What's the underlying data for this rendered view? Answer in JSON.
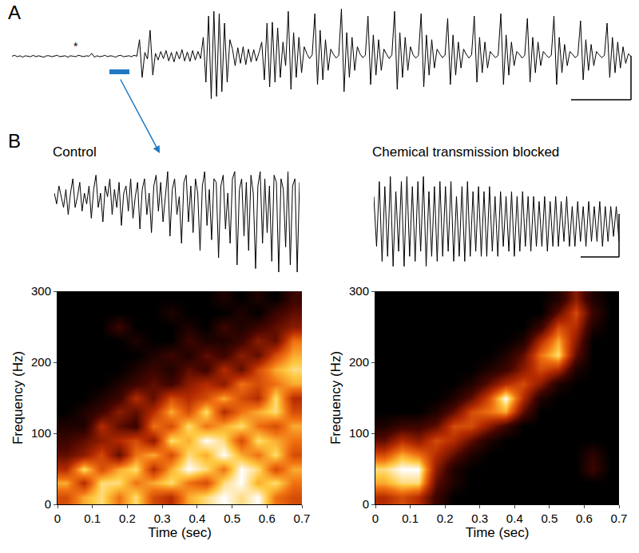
{
  "chart_data": [
    {
      "type": "line",
      "label": "A",
      "color": "#000000",
      "tick_labels": false,
      "annotations": [
        {
          "text": "*",
          "x": 24
        }
      ],
      "values": [
        0,
        0.02,
        -0.01,
        0.01,
        -0.02,
        0.01,
        0,
        -0.01,
        0.02,
        -0.01,
        0.01,
        0,
        -0.02,
        0.01,
        0.01,
        -0.01,
        0,
        0.02,
        -0.01,
        0,
        0.01,
        -0.02,
        0.01,
        0,
        -0.01,
        0.02,
        0,
        -0.01,
        0.01,
        0,
        0.06,
        -0.02,
        0.01,
        -0.01,
        0,
        0.02,
        -0.01,
        0.01,
        0,
        -0.02,
        0.01,
        0.02,
        -0.01,
        0,
        0.01,
        -0.01,
        0.02,
        0,
        0.35,
        -0.45,
        0.08,
        -0.06,
        0.55,
        -0.4,
        0.06,
        -0.08,
        0.1,
        -0.05,
        0.12,
        -0.1,
        0.08,
        -0.12,
        0.1,
        -0.06,
        0.14,
        -0.1,
        0.09,
        -0.11,
        0.12,
        -0.08,
        0.1,
        -0.05,
        0.4,
        -0.55,
        0.85,
        -0.9,
        0.95,
        -0.85,
        0.9,
        -0.75,
        0.7,
        -0.55,
        0.35,
        0.15,
        -0.2,
        0.18,
        -0.15,
        0.2,
        -0.18,
        0.15,
        -0.12,
        0.14,
        -0.1,
        0.08,
        0.3,
        -0.5,
        0.7,
        -0.65,
        0.72,
        -0.55,
        0.6,
        -0.45,
        0.3,
        -0.2,
        0.95,
        -0.7,
        0.5,
        -0.45,
        0.4,
        -0.35,
        0.2,
        0.05,
        -0.05,
        0.03,
        0.9,
        -0.6,
        0.55,
        -0.5,
        0.35,
        -0.3,
        0.15,
        0.04,
        -0.04,
        0.02,
        1,
        -0.75,
        0.5,
        -0.45,
        0.4,
        -0.3,
        0.2,
        0.05,
        -0.03,
        0.02,
        0.85,
        -0.6,
        0.45,
        -0.4,
        0.35,
        -0.3,
        0.15,
        0.04,
        -0.05,
        0.03,
        0.95,
        -0.7,
        0.5,
        -0.45,
        0.4,
        -0.3,
        0.2,
        0.03,
        -0.04,
        0.02,
        0.9,
        -0.65,
        0.45,
        -0.4,
        0.35,
        -0.25,
        0.15,
        0.05,
        -0.03,
        0.02,
        0.8,
        -0.6,
        0.45,
        -0.4,
        0.3,
        -0.25,
        0.15,
        0.04,
        -0.04,
        0.03,
        0.85,
        -0.55,
        0.4,
        -0.35,
        0.3,
        -0.25,
        0.1,
        0.03,
        -0.03,
        0.02,
        0.9,
        -0.6,
        0.45,
        -0.4,
        0.3,
        -0.2,
        0.1,
        0.04,
        -0.04,
        0.02,
        0.8,
        -0.55,
        0.4,
        -0.35,
        0.3,
        -0.2,
        0.1,
        0.03,
        -0.03,
        0.02,
        0.85,
        -0.6,
        0.4,
        -0.35,
        0.25,
        -0.2,
        0.1,
        0.04,
        -0.03,
        0.02,
        0.75,
        -0.5,
        0.35,
        -0.3,
        0.25,
        -0.2,
        0.1,
        0.03,
        -0.03,
        0.02,
        0.7,
        -0.45,
        0.4,
        -0.35,
        0.3,
        -0.25,
        0.2,
        -0.15,
        0.05,
        0
      ]
    },
    {
      "type": "line",
      "label": "B",
      "title": "Control",
      "color": "#000000",
      "tick_labels": false,
      "values": [
        0.1,
        -0.05,
        0.2,
        0.05,
        -0.1,
        0.15,
        -0.2,
        0.1,
        0.3,
        -0.1,
        0.05,
        0.25,
        -0.15,
        0.1,
        -0.05,
        0.2,
        -0.25,
        0.15,
        0.35,
        -0.1,
        0.1,
        -0.3,
        0.2,
        0.05,
        0.3,
        -0.2,
        0.15,
        -0.1,
        0.25,
        -0.35,
        0.1,
        0.2,
        -0.15,
        0.3,
        -0.25,
        0.05,
        0.25,
        -0.4,
        0.15,
        0.3,
        -0.2,
        0.1,
        -0.45,
        0.2,
        0.35,
        -0.15,
        0.25,
        -0.3,
        0.1,
        0.4,
        -0.5,
        0.15,
        0.3,
        -0.2,
        0.05,
        -0.6,
        0.25,
        0.35,
        -0.3,
        0.2,
        -0.45,
        0.3,
        0.1,
        -0.7,
        0.2,
        0.4,
        -0.35,
        0.15,
        -0.55,
        0.3,
        0.25,
        -0.8,
        0.2,
        0.35,
        -0.4,
        0.1,
        -0.6,
        0.3,
        0.4,
        -0.9,
        0.15,
        0.3,
        -0.5,
        0.25,
        -0.7,
        0.35,
        0.1,
        -0.95,
        0.2,
        0.4,
        -0.6,
        0.3,
        -0.45,
        0.2,
        -0.85,
        0.35,
        0.25,
        -1,
        0.3,
        0.15,
        -0.65,
        0.4,
        -0.9,
        0.2,
        0.3,
        -1,
        0.25
      ]
    },
    {
      "type": "line",
      "title": "Chemical transmission blocked",
      "color": "#000000",
      "tick_labels": false,
      "values": [
        0.3,
        -0.2,
        0.45,
        -0.35,
        0.4,
        -0.3,
        0.5,
        -0.4,
        0.35,
        -0.25,
        0.45,
        -0.4,
        0.5,
        -0.3,
        0.4,
        -0.35,
        0.45,
        -0.25,
        0.5,
        -0.4,
        0.35,
        -0.3,
        0.4,
        -0.35,
        0.45,
        -0.3,
        0.4,
        -0.25,
        0.45,
        -0.35,
        0.3,
        -0.3,
        0.4,
        -0.35,
        0.45,
        -0.3,
        0.35,
        -0.25,
        0.4,
        -0.3,
        0.35,
        -0.3,
        0.4,
        -0.25,
        0.3,
        -0.3,
        0.35,
        -0.2,
        0.3,
        -0.25,
        0.35,
        -0.3,
        0.3,
        -0.25,
        0.35,
        -0.2,
        0.3,
        -0.25,
        0.3,
        -0.2,
        0.25,
        -0.2,
        0.3,
        -0.25,
        0.25,
        -0.2,
        0.3,
        -0.2,
        0.25,
        -0.15,
        0.3,
        -0.2,
        0.2,
        -0.2,
        0.25,
        -0.15,
        0.2,
        -0.2,
        0.25,
        -0.15,
        0.2,
        -0.15,
        0.25,
        -0.2,
        0.2,
        -0.15,
        0.2,
        -0.1,
        0.2,
        -0.15
      ]
    },
    {
      "type": "heatmap",
      "xlabel": "Time (sec)",
      "ylabel": "Frequency (Hz)",
      "xlim": [
        0,
        0.7
      ],
      "xticks": [
        0,
        0.1,
        0.2,
        0.3,
        0.4,
        0.5,
        0.6,
        0.7
      ],
      "ylim": [
        0,
        300
      ],
      "yticks": [
        0,
        100,
        200,
        300
      ],
      "zlim": [
        0,
        1
      ],
      "x": [
        0.025,
        0.075,
        0.125,
        0.175,
        0.225,
        0.275,
        0.325,
        0.375,
        0.425,
        0.475,
        0.525,
        0.575,
        0.625,
        0.675
      ],
      "y": [
        10,
        30,
        50,
        70,
        90,
        110,
        130,
        150,
        170,
        190,
        210,
        230,
        250,
        270,
        290
      ],
      "z": [
        [
          0.6,
          0.8,
          0.9,
          0.7,
          0.9,
          0.6,
          0.5,
          0.8,
          0.9,
          1,
          0.9,
          1,
          0.7,
          0.6
        ],
        [
          0.8,
          0.5,
          0.9,
          0.9,
          0.7,
          0.8,
          0.9,
          0.7,
          0.6,
          0.9,
          1,
          0.8,
          0.9,
          0.7
        ],
        [
          0.5,
          0.9,
          0.6,
          0.8,
          0.9,
          0.5,
          0.8,
          1,
          0.9,
          0.7,
          1,
          0.9,
          0.6,
          0.8
        ],
        [
          0.3,
          0.4,
          0.6,
          0.3,
          0.7,
          0.8,
          0.6,
          0.9,
          0.8,
          1,
          0.8,
          0.7,
          0.9,
          0.6
        ],
        [
          0.2,
          0.3,
          0.4,
          0.5,
          0.6,
          0.4,
          0.9,
          0.8,
          1,
          0.9,
          0.6,
          0.9,
          0.8,
          0.7
        ],
        [
          0.1,
          0.1,
          0.5,
          0.3,
          0.2,
          0.7,
          0.6,
          0.9,
          0.7,
          0.8,
          0.9,
          0.7,
          0.6,
          0.8
        ],
        [
          0,
          0.1,
          0.2,
          0.4,
          0.3,
          0.5,
          0.8,
          0.6,
          0.9,
          0.5,
          0.7,
          0.8,
          0.9,
          0.6
        ],
        [
          0,
          0,
          0.1,
          0.2,
          0.5,
          0.3,
          0.6,
          0.5,
          0.6,
          0.8,
          0.6,
          0.5,
          0.9,
          0.5
        ],
        [
          0,
          0,
          0,
          0.1,
          0.2,
          0.3,
          0.2,
          0.4,
          0.5,
          0.4,
          0.7,
          0.6,
          0.7,
          0.8
        ],
        [
          0,
          0,
          0,
          0,
          0.1,
          0.2,
          0.1,
          0.3,
          0.2,
          0.5,
          0.3,
          0.6,
          0.8,
          0.9
        ],
        [
          0,
          0,
          0,
          0,
          0,
          0.1,
          0.2,
          0.1,
          0.3,
          0.2,
          0.4,
          0.3,
          0.6,
          0.8
        ],
        [
          0,
          0,
          0,
          0,
          0.1,
          0,
          0,
          0.2,
          0.1,
          0.1,
          0.2,
          0.4,
          0.3,
          0.7
        ],
        [
          0,
          0,
          0,
          0.2,
          0,
          0,
          0,
          0.1,
          0,
          0.2,
          0.1,
          0.2,
          0.3,
          0.4
        ],
        [
          0,
          0,
          0,
          0,
          0,
          0,
          0.1,
          0,
          0,
          0,
          0.1,
          0,
          0.2,
          0.3
        ],
        [
          0,
          0,
          0,
          0,
          0,
          0,
          0,
          0,
          0,
          0.1,
          0,
          0.1,
          0,
          0.2
        ]
      ]
    },
    {
      "type": "heatmap",
      "xlabel": "Time (sec)",
      "ylabel": "Frequency (Hz)",
      "xlim": [
        0,
        0.7
      ],
      "xticks": [
        0,
        0.1,
        0.2,
        0.3,
        0.4,
        0.5,
        0.6,
        0.7
      ],
      "ylim": [
        0,
        300
      ],
      "yticks": [
        0,
        100,
        200,
        300
      ],
      "zlim": [
        0,
        1
      ],
      "x": [
        0.025,
        0.075,
        0.125,
        0.175,
        0.225,
        0.275,
        0.325,
        0.375,
        0.425,
        0.475,
        0.525,
        0.575,
        0.625,
        0.675
      ],
      "y": [
        10,
        30,
        50,
        70,
        90,
        110,
        130,
        150,
        170,
        190,
        210,
        230,
        250,
        270,
        290
      ],
      "z": [
        [
          0.5,
          0.6,
          0.5,
          0.2,
          0,
          0,
          0,
          0,
          0,
          0,
          0,
          0,
          0,
          0
        ],
        [
          0.8,
          0.9,
          0.9,
          0.3,
          0.1,
          0,
          0,
          0,
          0,
          0,
          0,
          0,
          0,
          0
        ],
        [
          0.9,
          1,
          1,
          0.4,
          0.1,
          0,
          0,
          0,
          0,
          0,
          0,
          0,
          0.2,
          0
        ],
        [
          0.6,
          0.8,
          0.7,
          0.5,
          0.3,
          0.1,
          0,
          0,
          0,
          0,
          0,
          0,
          0.15,
          0
        ],
        [
          0.3,
          0.5,
          0.4,
          0.6,
          0.5,
          0.3,
          0.1,
          0,
          0,
          0,
          0,
          0,
          0,
          0
        ],
        [
          0.1,
          0.2,
          0.2,
          0.3,
          0.6,
          0.6,
          0.4,
          0.2,
          0,
          0,
          0,
          0,
          0,
          0
        ],
        [
          0,
          0,
          0,
          0.1,
          0.3,
          0.6,
          0.7,
          0.8,
          0.3,
          0,
          0,
          0,
          0,
          0
        ],
        [
          0,
          0,
          0,
          0,
          0.1,
          0.3,
          0.6,
          1,
          0.5,
          0.1,
          0,
          0,
          0,
          0
        ],
        [
          0,
          0,
          0,
          0,
          0,
          0.1,
          0.3,
          0.5,
          0.6,
          0.4,
          0.1,
          0,
          0,
          0
        ],
        [
          0,
          0,
          0,
          0,
          0,
          0,
          0.1,
          0.2,
          0.4,
          0.6,
          0.5,
          0.1,
          0,
          0
        ],
        [
          0,
          0,
          0,
          0,
          0,
          0,
          0,
          0.1,
          0.3,
          0.7,
          0.9,
          0.3,
          0,
          0
        ],
        [
          0,
          0,
          0,
          0,
          0,
          0,
          0,
          0,
          0.1,
          0.5,
          0.8,
          0.4,
          0,
          0
        ],
        [
          0,
          0,
          0,
          0,
          0,
          0,
          0,
          0,
          0,
          0.2,
          0.6,
          0.5,
          0.1,
          0
        ],
        [
          0,
          0,
          0,
          0,
          0,
          0,
          0,
          0,
          0,
          0,
          0.3,
          0.6,
          0.2,
          0
        ],
        [
          0,
          0,
          0,
          0,
          0,
          0,
          0,
          0,
          0,
          0,
          0.1,
          0.4,
          0.1,
          0
        ]
      ]
    }
  ]
}
